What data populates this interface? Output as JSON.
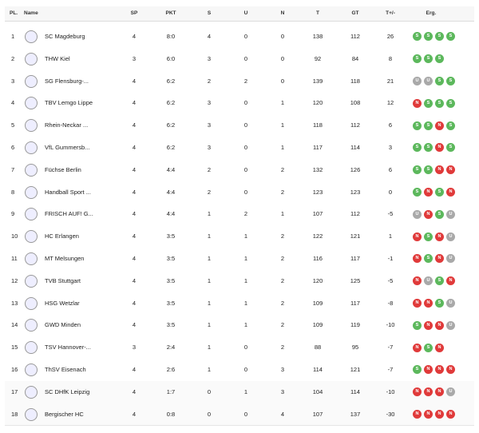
{
  "table": {
    "header": [
      "PL.",
      "Name",
      "SP",
      "PKT",
      "S",
      "U",
      "N",
      "T",
      "GT",
      "T+/-",
      "Erg."
    ],
    "rows": [
      [
        "1",
        "SC Magdeburg",
        "4",
        "8:0",
        "4",
        "0",
        "0",
        "138",
        "112",
        "26",
        [
          "S",
          "S",
          "S",
          "S"
        ]
      ],
      [
        "2",
        "THW Kiel",
        "3",
        "6:0",
        "3",
        "0",
        "0",
        "92",
        "84",
        "8",
        [
          "S",
          "S",
          "S"
        ]
      ],
      [
        "3",
        "SG Flensburg-...",
        "4",
        "6:2",
        "2",
        "2",
        "0",
        "139",
        "118",
        "21",
        [
          "U",
          "U",
          "S",
          "S"
        ]
      ],
      [
        "4",
        "TBV Lemgo Lippe",
        "4",
        "6:2",
        "3",
        "0",
        "1",
        "120",
        "108",
        "12",
        [
          "N",
          "S",
          "S",
          "S"
        ]
      ],
      [
        "5",
        "Rhein-Neckar ...",
        "4",
        "6:2",
        "3",
        "0",
        "1",
        "118",
        "112",
        "6",
        [
          "S",
          "S",
          "N",
          "S"
        ]
      ],
      [
        "6",
        "VfL Gummersb...",
        "4",
        "6:2",
        "3",
        "0",
        "1",
        "117",
        "114",
        "3",
        [
          "S",
          "S",
          "N",
          "S"
        ]
      ],
      [
        "7",
        "Füchse Berlin",
        "4",
        "4:4",
        "2",
        "0",
        "2",
        "132",
        "126",
        "6",
        [
          "S",
          "S",
          "N",
          "N"
        ]
      ],
      [
        "8",
        "Handball Sport ...",
        "4",
        "4:4",
        "2",
        "0",
        "2",
        "123",
        "123",
        "0",
        [
          "S",
          "N",
          "S",
          "N"
        ]
      ],
      [
        "9",
        "FRISCH AUF! G...",
        "4",
        "4:4",
        "1",
        "2",
        "1",
        "107",
        "112",
        "-5",
        [
          "U",
          "N",
          "S",
          "U"
        ]
      ],
      [
        "10",
        "HC Erlangen",
        "4",
        "3:5",
        "1",
        "1",
        "2",
        "122",
        "121",
        "1",
        [
          "N",
          "S",
          "N",
          "U"
        ]
      ],
      [
        "11",
        "MT Melsungen",
        "4",
        "3:5",
        "1",
        "1",
        "2",
        "116",
        "117",
        "-1",
        [
          "N",
          "S",
          "N",
          "U"
        ]
      ],
      [
        "12",
        "TVB Stuttgart",
        "4",
        "3:5",
        "1",
        "1",
        "2",
        "120",
        "125",
        "-5",
        [
          "N",
          "U",
          "S",
          "N"
        ]
      ],
      [
        "13",
        "HSG Wetzlar",
        "4",
        "3:5",
        "1",
        "1",
        "2",
        "109",
        "117",
        "-8",
        [
          "N",
          "N",
          "S",
          "U"
        ]
      ],
      [
        "14",
        "GWD Minden",
        "4",
        "3:5",
        "1",
        "1",
        "2",
        "109",
        "119",
        "-10",
        [
          "S",
          "N",
          "N",
          "U"
        ]
      ],
      [
        "15",
        "TSV Hannover-...",
        "3",
        "2:4",
        "1",
        "0",
        "2",
        "88",
        "95",
        "-7",
        [
          "N",
          "S",
          "N"
        ]
      ],
      [
        "16",
        "ThSV Eisenach",
        "4",
        "2:6",
        "1",
        "0",
        "3",
        "114",
        "121",
        "-7",
        [
          "S",
          "N",
          "N",
          "N"
        ]
      ],
      [
        "17",
        "SC DHfK Leipzig",
        "4",
        "1:7",
        "0",
        "1",
        "3",
        "104",
        "114",
        "-10",
        [
          "N",
          "N",
          "N",
          "U"
        ]
      ],
      [
        "18",
        "Bergischer HC",
        "4",
        "0:8",
        "0",
        "0",
        "4",
        "107",
        "137",
        "-30",
        [
          "N",
          "N",
          "N",
          "N"
        ]
      ]
    ]
  }
}
